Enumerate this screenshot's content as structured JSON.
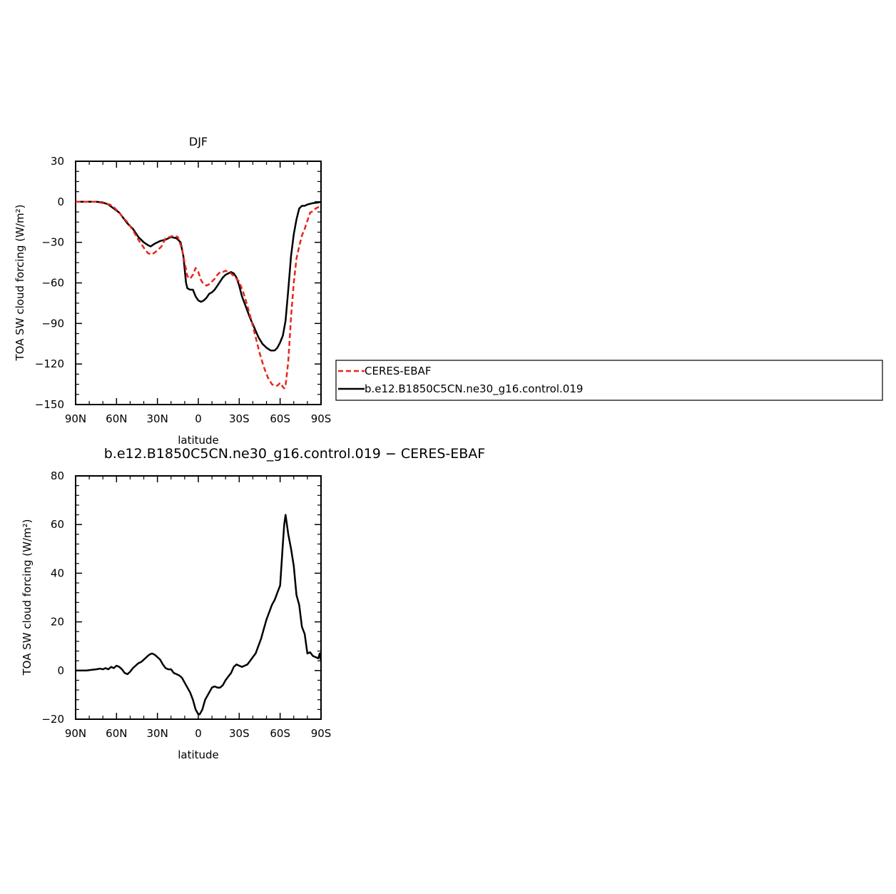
{
  "chart_data": [
    {
      "type": "line",
      "title": "DJF",
      "xlabel": "latitude",
      "ylabel": "TOA SW cloud forcing (W/m²)",
      "x_ticks": [
        "90N",
        "60N",
        "30N",
        "0",
        "30S",
        "60S",
        "90S"
      ],
      "xlim": [
        -90,
        90
      ],
      "ylim": [
        -150,
        30
      ],
      "y_ticks": [
        30,
        0,
        -30,
        -60,
        -90,
        -120,
        -150
      ],
      "y_tick_labels": [
        "30",
        "0",
        "−30",
        "−60",
        "−90",
        "−120",
        "−150"
      ],
      "legend_position": "right",
      "series": [
        {
          "name": "CERES-EBAF",
          "style": "dashed",
          "color": "#e8251b",
          "x": [
            -90,
            -80,
            -75,
            -70,
            -65,
            -62,
            -58,
            -55,
            -52,
            -48,
            -44,
            -40,
            -37,
            -34,
            -30,
            -27,
            -24,
            -21,
            -18,
            -15,
            -12,
            -10,
            -8,
            -6,
            -4,
            -2,
            0,
            2,
            4,
            6,
            8,
            10,
            12,
            14,
            16,
            18,
            20,
            22,
            24,
            26,
            28,
            30,
            33,
            36,
            39,
            42,
            45,
            48,
            51,
            54,
            56,
            58,
            60,
            61,
            62,
            63,
            64,
            66,
            68,
            70,
            72,
            74,
            76,
            78,
            80,
            82,
            84,
            86,
            88,
            90
          ],
          "y": [
            0,
            0,
            0,
            -1,
            -2,
            -4,
            -8,
            -12,
            -15,
            -21,
            -28,
            -34,
            -38,
            -39,
            -36,
            -33,
            -27,
            -26,
            -25,
            -26,
            -35,
            -45,
            -55,
            -57,
            -54,
            -49,
            -52,
            -58,
            -61,
            -62,
            -61,
            -59,
            -57,
            -54,
            -52,
            -52,
            -51,
            -52,
            -53,
            -55,
            -57,
            -59,
            -67,
            -77,
            -88,
            -100,
            -112,
            -122,
            -130,
            -135,
            -136,
            -136,
            -134,
            -135,
            -137,
            -138,
            -136,
            -118,
            -85,
            -60,
            -42,
            -33,
            -25,
            -20,
            -14,
            -8,
            -7,
            -5,
            -4,
            -4
          ]
        },
        {
          "name": "b.e12.B1850C5CN.ne30_g16.control.019",
          "style": "solid",
          "color": "#000000",
          "x": [
            -90,
            -80,
            -75,
            -70,
            -66,
            -62,
            -58,
            -55,
            -52,
            -48,
            -44,
            -40,
            -37,
            -35,
            -32,
            -28,
            -24,
            -20,
            -16,
            -13,
            -11,
            -10,
            -9,
            -8,
            -6,
            -4,
            -2,
            0,
            2,
            4,
            6,
            8,
            10,
            12,
            14,
            16,
            18,
            20,
            22,
            24,
            26,
            28,
            30,
            32,
            35,
            38,
            41,
            44,
            47,
            50,
            53,
            56,
            58,
            60,
            62,
            64,
            66,
            68,
            70,
            72,
            74,
            76,
            78,
            80,
            84,
            88,
            90
          ],
          "y": [
            0,
            0,
            0,
            -0.5,
            -2,
            -5,
            -8,
            -12,
            -16,
            -20,
            -26,
            -30,
            -32,
            -33,
            -31,
            -29,
            -28,
            -26,
            -27,
            -30,
            -40,
            -50,
            -60,
            -64,
            -65,
            -65,
            -70,
            -73,
            -74,
            -73,
            -71,
            -68,
            -67,
            -65,
            -62,
            -59,
            -56,
            -54,
            -53,
            -52,
            -53,
            -56,
            -62,
            -70,
            -78,
            -86,
            -93,
            -100,
            -105,
            -108,
            -110,
            -110,
            -108,
            -104,
            -99,
            -88,
            -65,
            -40,
            -24,
            -13,
            -5,
            -3,
            -3,
            -2,
            -1,
            -0.5,
            0
          ]
        }
      ]
    },
    {
      "type": "line",
      "title": "b.e12.B1850C5CN.ne30_g16.control.019 − CERES-EBAF",
      "xlabel": "latitude",
      "ylabel": "TOA SW cloud forcing (W/m²)",
      "x_ticks": [
        "90N",
        "60N",
        "30N",
        "0",
        "30S",
        "60S",
        "90S"
      ],
      "xlim": [
        -90,
        90
      ],
      "ylim": [
        -20,
        80
      ],
      "y_ticks": [
        80,
        60,
        40,
        20,
        0,
        -20
      ],
      "y_tick_labels": [
        "80",
        "60",
        "40",
        "20",
        "0",
        "−20"
      ],
      "series": [
        {
          "name": "",
          "style": "solid",
          "color": "#000000",
          "x": [
            -90,
            -82,
            -78,
            -75,
            -72,
            -70,
            -68,
            -66,
            -64,
            -62,
            -60,
            -58,
            -56,
            -54,
            -52,
            -50,
            -48,
            -46,
            -44,
            -42,
            -40,
            -38,
            -36,
            -34,
            -32,
            -30,
            -28,
            -26,
            -24,
            -22,
            -20,
            -18,
            -16,
            -14,
            -12,
            -10,
            -8,
            -6,
            -4,
            -2,
            0,
            1,
            2,
            3,
            4,
            5,
            6,
            8,
            10,
            12,
            14,
            16,
            18,
            20,
            22,
            24,
            26,
            28,
            30,
            32,
            34,
            36,
            38,
            40,
            42,
            44,
            46,
            48,
            50,
            52,
            54,
            56,
            58,
            60,
            62,
            63,
            64,
            65,
            66,
            68,
            70,
            72,
            74,
            76,
            78,
            80,
            82,
            84,
            86,
            88,
            89,
            90
          ],
          "y": [
            0,
            0,
            0.3,
            0.5,
            0.8,
            0.5,
            1,
            0.5,
            1.5,
            1,
            2,
            1.5,
            0.5,
            -1,
            -1.5,
            -0.5,
            1,
            2,
            3,
            3.5,
            4.5,
            5.5,
            6.5,
            7,
            6.5,
            5.5,
            4.5,
            2.5,
            1,
            0.5,
            0.5,
            -1,
            -1.5,
            -2,
            -3,
            -5,
            -7,
            -9,
            -12,
            -16,
            -18,
            -18,
            -17,
            -16,
            -14,
            -12,
            -11,
            -9,
            -7,
            -6.5,
            -7,
            -7,
            -6,
            -4,
            -2.5,
            -1,
            1.5,
            2.5,
            2,
            1.5,
            2,
            2.5,
            4,
            5.5,
            7,
            10,
            13,
            17,
            21,
            24,
            27,
            29,
            32,
            35,
            52,
            60,
            64,
            60,
            56,
            50,
            43,
            31,
            27,
            18,
            15,
            7,
            7.5,
            6,
            5.5,
            5,
            7,
            4
          ]
        }
      ]
    }
  ]
}
